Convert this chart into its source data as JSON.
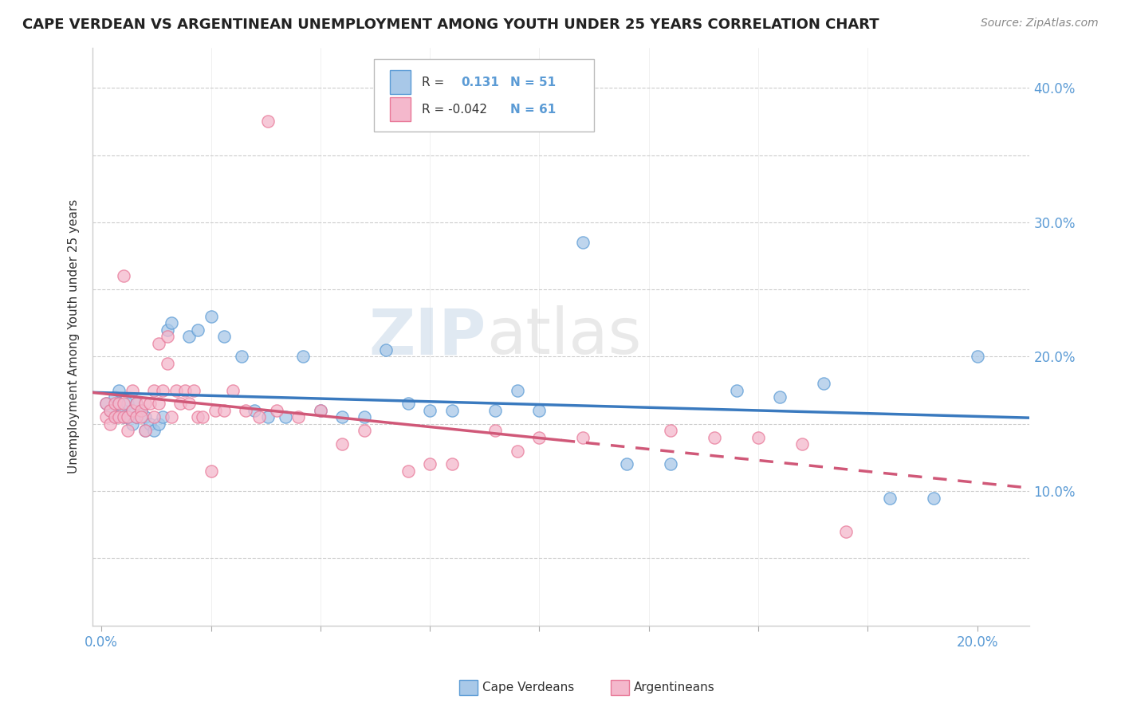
{
  "title": "CAPE VERDEAN VS ARGENTINEAN UNEMPLOYMENT AMONG YOUTH UNDER 25 YEARS CORRELATION CHART",
  "source_text": "Source: ZipAtlas.com",
  "xlim": [
    -0.002,
    0.212
  ],
  "ylim": [
    0.0,
    0.43
  ],
  "x_ticks": [
    0.0,
    0.025,
    0.05,
    0.075,
    0.1,
    0.125,
    0.15,
    0.175,
    0.2
  ],
  "x_tick_labels": [
    "0.0%",
    "",
    "",
    "",
    "",
    "",
    "",
    "",
    "20.0%"
  ],
  "y_ticks": [
    0.0,
    0.05,
    0.1,
    0.15,
    0.2,
    0.25,
    0.3,
    0.35,
    0.4
  ],
  "y_tick_labels": [
    "",
    "",
    "10.0%",
    "",
    "20.0%",
    "",
    "30.0%",
    "",
    "40.0%"
  ],
  "watermark": "ZIPatlas",
  "cv_color": "#a8c8e8",
  "arg_color": "#f4b8cc",
  "cv_edge_color": "#5b9bd5",
  "arg_edge_color": "#e87898",
  "cv_line_color": "#3a7abf",
  "arg_line_color": "#d05878",
  "grid_color": "#cccccc",
  "cv_R": 0.131,
  "cv_N": 51,
  "arg_R": -0.042,
  "arg_N": 61,
  "cape_verdean_x": [
    0.001,
    0.002,
    0.003,
    0.003,
    0.004,
    0.004,
    0.005,
    0.005,
    0.006,
    0.006,
    0.007,
    0.007,
    0.008,
    0.008,
    0.009,
    0.01,
    0.01,
    0.011,
    0.012,
    0.013,
    0.014,
    0.015,
    0.016,
    0.02,
    0.022,
    0.025,
    0.028,
    0.032,
    0.035,
    0.038,
    0.042,
    0.046,
    0.05,
    0.055,
    0.06,
    0.065,
    0.07,
    0.075,
    0.08,
    0.09,
    0.095,
    0.1,
    0.11,
    0.12,
    0.13,
    0.145,
    0.155,
    0.165,
    0.18,
    0.19,
    0.2
  ],
  "cape_verdean_y": [
    0.165,
    0.16,
    0.155,
    0.17,
    0.175,
    0.165,
    0.16,
    0.155,
    0.165,
    0.155,
    0.16,
    0.15,
    0.165,
    0.155,
    0.16,
    0.155,
    0.145,
    0.15,
    0.145,
    0.15,
    0.155,
    0.22,
    0.225,
    0.215,
    0.22,
    0.23,
    0.215,
    0.2,
    0.16,
    0.155,
    0.155,
    0.2,
    0.16,
    0.155,
    0.155,
    0.205,
    0.165,
    0.16,
    0.16,
    0.16,
    0.175,
    0.16,
    0.285,
    0.12,
    0.12,
    0.175,
    0.17,
    0.18,
    0.095,
    0.095,
    0.2
  ],
  "argentinean_x": [
    0.001,
    0.001,
    0.002,
    0.002,
    0.003,
    0.003,
    0.004,
    0.004,
    0.005,
    0.005,
    0.005,
    0.006,
    0.006,
    0.007,
    0.007,
    0.008,
    0.008,
    0.009,
    0.009,
    0.01,
    0.01,
    0.011,
    0.012,
    0.012,
    0.013,
    0.013,
    0.014,
    0.015,
    0.015,
    0.016,
    0.017,
    0.018,
    0.019,
    0.02,
    0.021,
    0.022,
    0.023,
    0.025,
    0.026,
    0.028,
    0.03,
    0.033,
    0.036,
    0.038,
    0.04,
    0.045,
    0.05,
    0.055,
    0.06,
    0.07,
    0.075,
    0.08,
    0.09,
    0.095,
    0.1,
    0.11,
    0.13,
    0.14,
    0.15,
    0.16,
    0.17
  ],
  "argentinean_y": [
    0.165,
    0.155,
    0.16,
    0.15,
    0.165,
    0.155,
    0.165,
    0.155,
    0.165,
    0.155,
    0.26,
    0.155,
    0.145,
    0.16,
    0.175,
    0.165,
    0.155,
    0.16,
    0.155,
    0.165,
    0.145,
    0.165,
    0.155,
    0.175,
    0.165,
    0.21,
    0.175,
    0.195,
    0.215,
    0.155,
    0.175,
    0.165,
    0.175,
    0.165,
    0.175,
    0.155,
    0.155,
    0.115,
    0.16,
    0.16,
    0.175,
    0.16,
    0.155,
    0.375,
    0.16,
    0.155,
    0.16,
    0.135,
    0.145,
    0.115,
    0.12,
    0.12,
    0.145,
    0.13,
    0.14,
    0.14,
    0.145,
    0.14,
    0.14,
    0.135,
    0.07
  ]
}
